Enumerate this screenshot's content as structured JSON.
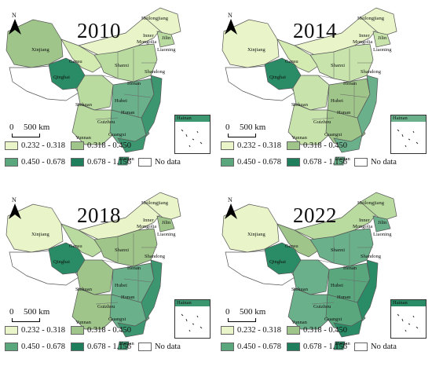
{
  "panels": [
    {
      "year": "2010",
      "xinjiang": "#9fc58a",
      "qinghai": "#2a8c66",
      "tibet": "#ffffff",
      "gansu": "#d3eab0",
      "mongolia": "#e9f5c9",
      "east": "#b9dba0",
      "south": "#6ab08a",
      "coast": "#3c9670"
    },
    {
      "year": "2014",
      "xinjiang": "#e9f5c9",
      "qinghai": "#2a8c66",
      "tibet": "#ffffff",
      "gansu": "#d3eab0",
      "mongolia": "#e9f5c9",
      "east": "#c8e4ac",
      "south": "#9fc58a",
      "coast": "#6ab08a"
    },
    {
      "year": "2018",
      "xinjiang": "#e9f5c9",
      "qinghai": "#2a8c66",
      "tibet": "#ffffff",
      "gansu": "#b9dba0",
      "mongolia": "#e9f5c9",
      "east": "#9fc58a",
      "south": "#6ab08a",
      "coast": "#3c9670"
    },
    {
      "year": "2022",
      "xinjiang": "#e9f5c9",
      "qinghai": "#2a8c66",
      "tibet": "#ffffff",
      "gansu": "#9fc58a",
      "mongolia": "#b9dba0",
      "east": "#6ab08a",
      "south": "#5aa77e",
      "coast": "#2a8c66"
    }
  ],
  "north_label": "N",
  "scale": {
    "zero": "0",
    "label": "500 km"
  },
  "legend": [
    {
      "label": "0.232 - 0.318",
      "color": "#e9f5c9"
    },
    {
      "label": "0.318 - 0.450",
      "color": "#9fc58a"
    },
    {
      "label": "0.450 - 0.678",
      "color": "#5aa77e"
    },
    {
      "label": "0.678 - 1.156",
      "color": "#1f7e5c"
    },
    {
      "label": "No data",
      "color": "#ffffff"
    }
  ],
  "provinces": {
    "heilongjiang": "Heilongjiang",
    "jilin": "Jilin",
    "inner": "Inner",
    "mongolia": "Mongolia",
    "liaoning": "Liaoning",
    "xinjiang": "Xinjiang",
    "gansu": "Gansu",
    "qinghai": "Qinghai",
    "shanxi": "Shanxi",
    "shandong": "Shandong",
    "henan": "Henan",
    "sichuan": "Sichuan",
    "hubei": "Hubei",
    "hunan": "Hunan",
    "guizhou": "Guizhou",
    "yunnan": "Yunnan",
    "guangxi": "Guangxi",
    "hainan": "Hainan"
  }
}
